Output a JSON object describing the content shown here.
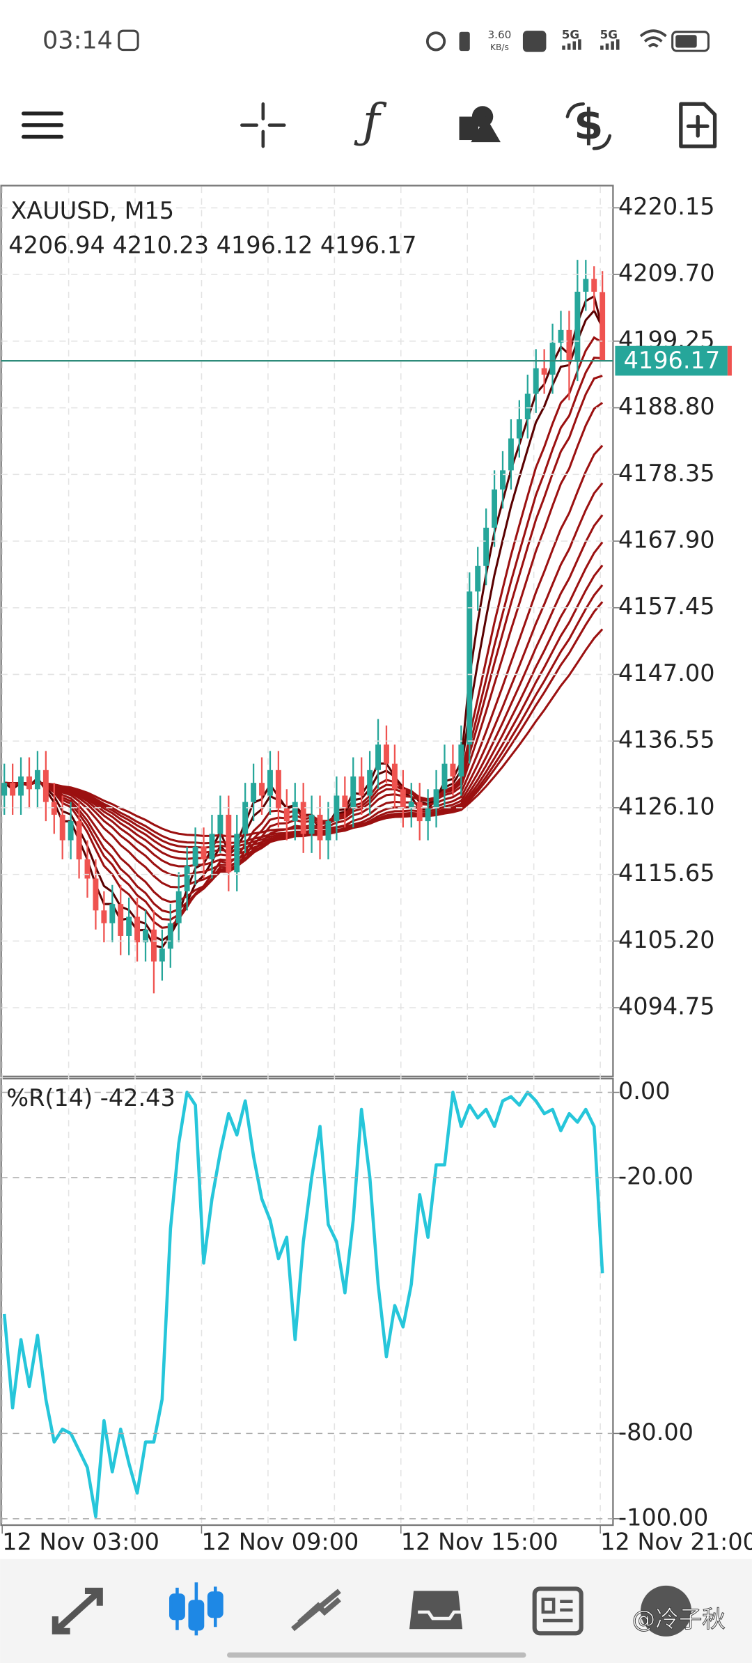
{
  "status_bar": {
    "time": "03:14",
    "speed": "3.60",
    "speed_unit": "KB/s",
    "network_1": "5G",
    "network_2": "5G"
  },
  "watermark": "@冷子秋",
  "chart_data": [
    {
      "type": "candlestick",
      "title": "XAUUSD, M15",
      "categories": [
        "12 Nov 03:00",
        null,
        null,
        null,
        null,
        null,
        null,
        null,
        null,
        null,
        null,
        null,
        null,
        null,
        null,
        null,
        null,
        null,
        null,
        null,
        null,
        null,
        null,
        null,
        "12 Nov 09:00",
        null,
        null,
        null,
        null,
        null,
        null,
        null,
        null,
        null,
        null,
        null,
        null,
        null,
        null,
        null,
        null,
        null,
        null,
        null,
        null,
        null,
        null,
        null,
        "12 Nov 15:00",
        null,
        null,
        null,
        null,
        null,
        null,
        null,
        null,
        null,
        null,
        null,
        null,
        null,
        null,
        null,
        null,
        null,
        null,
        null,
        null,
        null,
        null,
        null,
        "12 Nov 21:00"
      ],
      "open": [
        4128,
        4130,
        4128,
        4131,
        4129,
        4132,
        4127,
        4125,
        4121,
        4124,
        4118,
        4115,
        4110,
        4108,
        4111,
        4106,
        4109,
        4105,
        4107,
        4102,
        4104,
        4108,
        4113,
        4117,
        4120,
        4118,
        4122,
        4125,
        4116,
        4122,
        4127,
        4130,
        4128,
        4132,
        4126,
        4124,
        4127,
        4122,
        4125,
        4121,
        4124,
        4128,
        4126,
        4131,
        4128,
        4132,
        4136,
        4133,
        4129,
        4126,
        4127,
        4124,
        4126,
        4129,
        4133,
        4131,
        4136,
        4160,
        4164,
        4170,
        4176,
        4179,
        4184,
        4187,
        4191,
        4195,
        4194,
        4199,
        4201,
        4196,
        4207,
        4209,
        4206.94
      ],
      "high": [
        4133,
        4133,
        4134,
        4134,
        4135,
        4135,
        4130,
        4128,
        4127,
        4127,
        4121,
        4118,
        4113,
        4114,
        4114,
        4112,
        4112,
        4110,
        4110,
        4107,
        4111,
        4116,
        4120,
        4123,
        4123,
        4125,
        4128,
        4128,
        4125,
        4130,
        4133,
        4134,
        4135,
        4135,
        4129,
        4130,
        4130,
        4128,
        4128,
        4127,
        4131,
        4131,
        4134,
        4134,
        4135,
        4140,
        4139,
        4136,
        4132,
        4130,
        4130,
        4129,
        4132,
        4136,
        4136,
        4139,
        4163,
        4167,
        4173,
        4179,
        4182,
        4187,
        4190,
        4194,
        4198,
        4198,
        4202,
        4204,
        4204,
        4212,
        4212,
        4211,
        4210.23
      ],
      "low": [
        4125,
        4125,
        4125,
        4126,
        4126,
        4124,
        4122,
        4118,
        4118,
        4115,
        4112,
        4107,
        4105,
        4105,
        4103,
        4103,
        4102,
        4102,
        4097,
        4099,
        4101,
        4105,
        4110,
        4114,
        4115,
        4115,
        4119,
        4113,
        4113,
        4119,
        4124,
        4125,
        4125,
        4123,
        4121,
        4121,
        4119,
        4119,
        4118,
        4118,
        4121,
        4123,
        4123,
        4125,
        4125,
        4129,
        4130,
        4126,
        4123,
        4123,
        4121,
        4121,
        4123,
        4126,
        4128,
        4128,
        4133,
        4157,
        4161,
        4167,
        4173,
        4176,
        4181,
        4184,
        4188,
        4191,
        4191,
        4196,
        4190,
        4193,
        4204,
        4204,
        4196.12
      ],
      "close": [
        4130,
        4128,
        4131,
        4129,
        4132,
        4127,
        4125,
        4121,
        4124,
        4118,
        4115,
        4110,
        4108,
        4111,
        4106,
        4109,
        4105,
        4107,
        4102,
        4104,
        4108,
        4113,
        4117,
        4120,
        4118,
        4122,
        4125,
        4116,
        4122,
        4127,
        4130,
        4128,
        4132,
        4126,
        4124,
        4127,
        4122,
        4125,
        4121,
        4124,
        4128,
        4126,
        4131,
        4128,
        4132,
        4136,
        4133,
        4129,
        4126,
        4127,
        4124,
        4126,
        4129,
        4133,
        4131,
        4136,
        4160,
        4164,
        4170,
        4176,
        4179,
        4184,
        4187,
        4191,
        4195,
        4194,
        4199,
        4201,
        4196,
        4207,
        4209,
        4207,
        4196.17
      ],
      "up_color": "#26a69a",
      "down_color": "#ef5350",
      "ylim": [
        4084.13,
        4223.47
      ],
      "yticks": [
        4220.15,
        {
          "value": 4209.7,
          "label": "4209.70"
        },
        4199.25,
        {
          "value": 4188.8,
          "label": "4188.80"
        },
        4178.35,
        {
          "value": 4167.9,
          "label": "4167.90"
        },
        4157.45,
        {
          "value": 4147,
          "label": "4147.00"
        },
        4136.55,
        {
          "value": 4126.1,
          "label": "4126.10"
        },
        4115.65,
        {
          "value": 4105.2,
          "label": "4105.20"
        },
        4094.75
      ],
      "grid": true
    },
    {
      "type": "line",
      "title": "%R(14)",
      "values": [
        -52,
        -74,
        -58,
        -69,
        -57,
        -72,
        -82,
        -79,
        -80,
        -84,
        -88,
        -99.5,
        -77,
        -89,
        -79,
        -87,
        -94,
        -82,
        -82,
        -72,
        -32,
        -12,
        0,
        -3,
        -40,
        -25,
        -14,
        -5,
        -10,
        -2,
        -15,
        -25,
        -30,
        -39,
        -34,
        -58,
        -35,
        -20,
        -8,
        -31,
        -35,
        -47,
        -30,
        -4,
        -20,
        -45,
        -62,
        -50,
        -55,
        -45,
        -24,
        -34,
        -17,
        -17,
        0,
        -8,
        -3,
        -6,
        -4,
        -8,
        -2,
        -1,
        -3,
        0,
        -2,
        -5,
        -4,
        -9,
        -5,
        -7,
        -4,
        -8,
        -42.43
      ],
      "color": "#26c6da",
      "ylim": [
        -101.5,
        2.97
      ],
      "yticks": [
        {
          "value": 0,
          "label": "0.00"
        },
        {
          "value": -20,
          "label": "-20.00"
        },
        {
          "value": -80,
          "label": "-80.00"
        },
        {
          "value": -100,
          "label": "-100.00"
        }
      ]
    }
  ]
}
